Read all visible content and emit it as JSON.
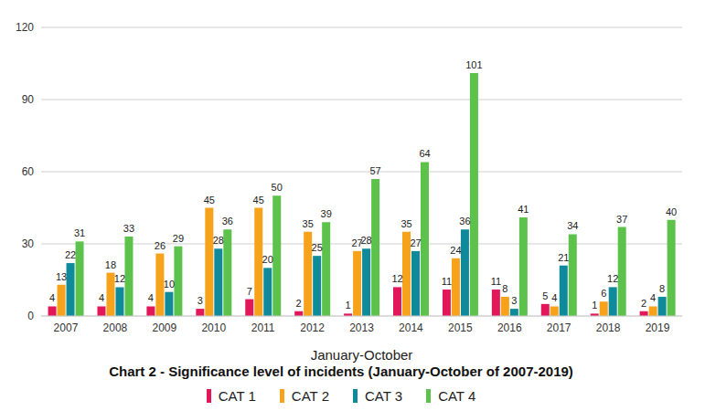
{
  "chart_data": {
    "type": "bar",
    "title": "Chart 2 - Significance level of incidents (January-October of 2007-2019)",
    "x_label": "January-October",
    "categories": [
      "2007",
      "2008",
      "2009",
      "2010",
      "2011",
      "2012",
      "2013",
      "2014",
      "2015",
      "2016",
      "2017",
      "2018",
      "2019"
    ],
    "series": [
      {
        "name": "CAT 1",
        "color": "#e2175a",
        "values": [
          4,
          4,
          4,
          3,
          7,
          2,
          1,
          12,
          11,
          11,
          5,
          1,
          2
        ]
      },
      {
        "name": "CAT 2",
        "color": "#f7a21b",
        "values": [
          13,
          18,
          26,
          45,
          45,
          35,
          27,
          35,
          24,
          8,
          4,
          6,
          4
        ]
      },
      {
        "name": "CAT 3",
        "color": "#0f8a9a",
        "values": [
          22,
          12,
          10,
          28,
          20,
          25,
          28,
          27,
          36,
          3,
          21,
          12,
          8
        ]
      },
      {
        "name": "CAT 4",
        "color": "#5cc24c",
        "values": [
          31,
          33,
          29,
          36,
          50,
          39,
          57,
          64,
          101,
          41,
          34,
          37,
          40
        ]
      }
    ],
    "ylim": [
      0,
      120
    ],
    "yticks": [
      0,
      30,
      60,
      90,
      120
    ],
    "grid": true,
    "legend": "bottom",
    "data_labels": true
  }
}
